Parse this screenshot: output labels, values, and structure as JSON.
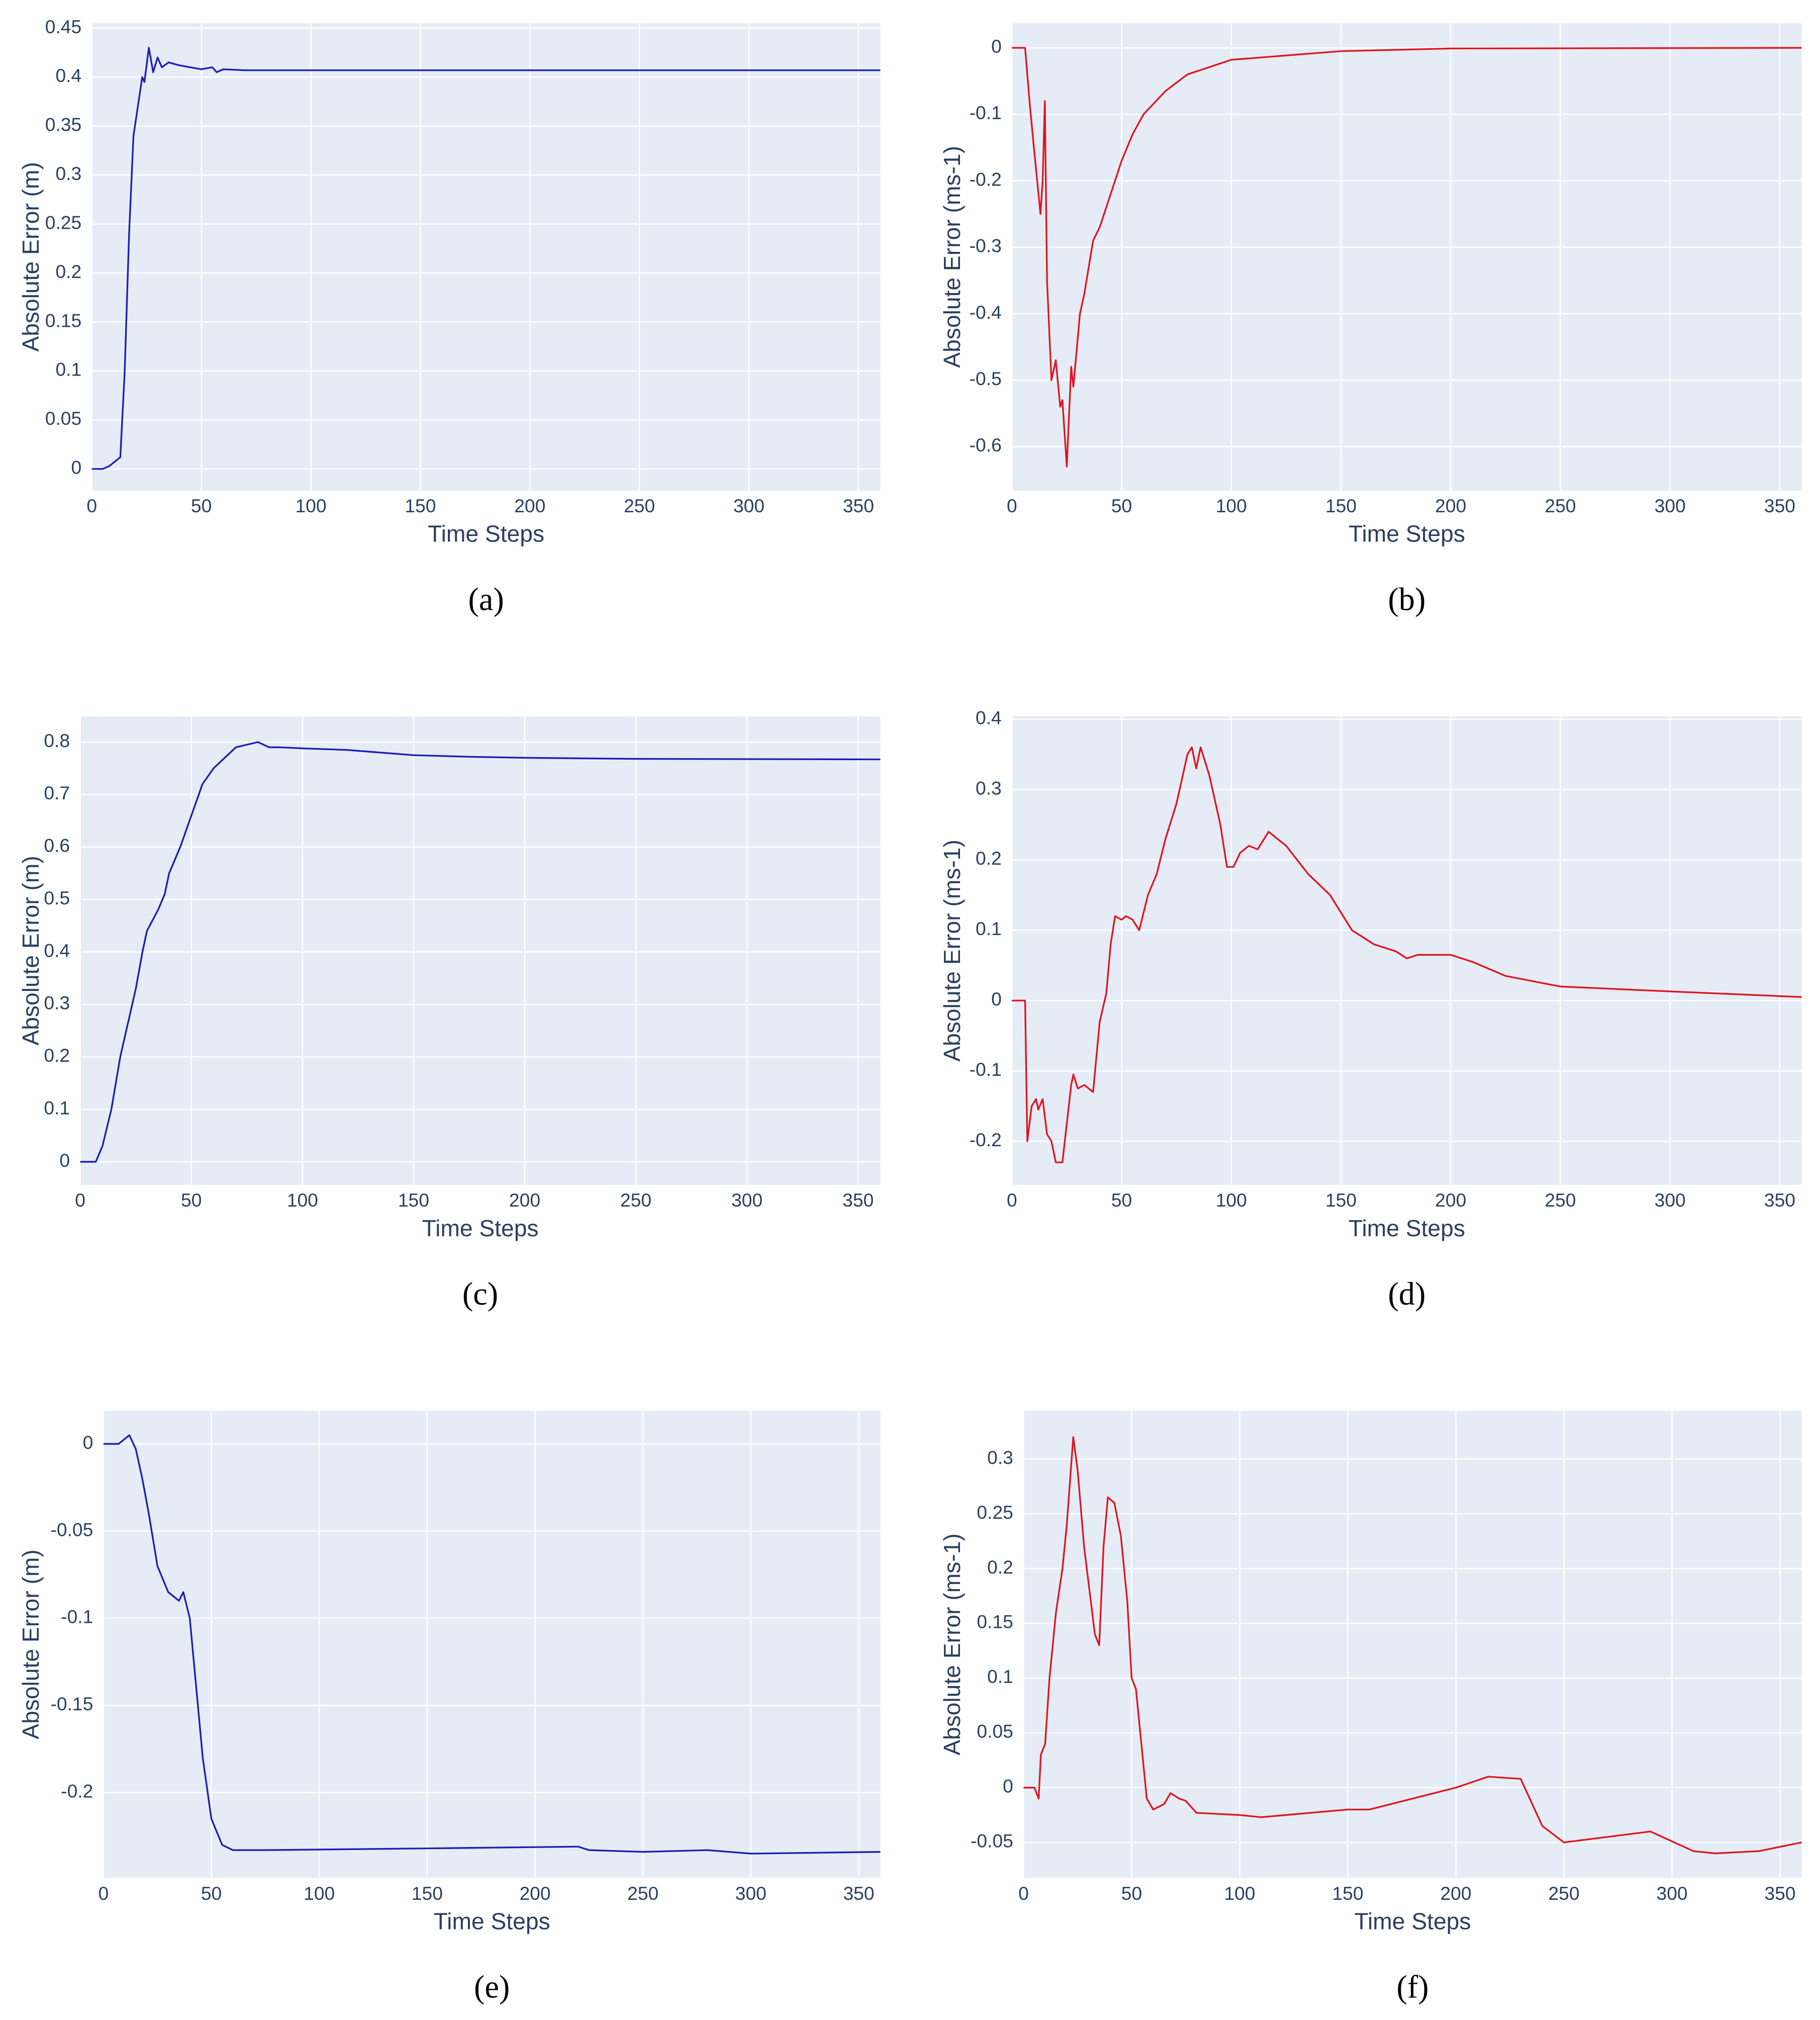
{
  "chart_data": [
    {
      "type": "line",
      "caption": "(a)",
      "xlabel": "Time Steps",
      "ylabel": "Absolute Error (m)",
      "xlim": [
        0,
        360
      ],
      "xticks": [
        0,
        50,
        100,
        150,
        200,
        250,
        300,
        350
      ],
      "ylim": [
        -0.022,
        0.455
      ],
      "yticks": [
        0,
        0.05,
        0.1,
        0.15,
        0.2,
        0.25,
        0.3,
        0.35,
        0.4,
        0.45
      ],
      "grid": true,
      "color": "#1c1cb8",
      "x": [
        0,
        5,
        8,
        13,
        15,
        17,
        19,
        21,
        23,
        24,
        26,
        28,
        30,
        32,
        35,
        40,
        45,
        50,
        55,
        57,
        60,
        70,
        100,
        200,
        360
      ],
      "values": [
        0,
        0,
        0.003,
        0.012,
        0.1,
        0.24,
        0.34,
        0.37,
        0.4,
        0.395,
        0.43,
        0.405,
        0.42,
        0.41,
        0.415,
        0.412,
        0.41,
        0.408,
        0.41,
        0.405,
        0.408,
        0.407,
        0.407,
        0.407,
        0.407
      ]
    },
    {
      "type": "line",
      "caption": "(b)",
      "xlabel": "Time Steps",
      "ylabel": "Absolute Error (ms-1)",
      "xlim": [
        0,
        360
      ],
      "xticks": [
        0,
        50,
        100,
        150,
        200,
        250,
        300,
        350
      ],
      "ylim": [
        -0.666,
        0.037
      ],
      "yticks": [
        -0.6,
        -0.5,
        -0.4,
        -0.3,
        -0.2,
        -0.1,
        0
      ],
      "grid": true,
      "color": "#e0141e",
      "x": [
        0,
        6,
        8,
        10,
        13,
        14,
        15,
        16,
        18,
        20,
        22,
        23,
        25,
        27,
        28,
        31,
        33,
        35,
        37,
        40,
        45,
        50,
        55,
        60,
        70,
        80,
        100,
        150,
        200,
        360
      ],
      "values": [
        0,
        0,
        -0.08,
        -0.15,
        -0.25,
        -0.2,
        -0.08,
        -0.35,
        -0.5,
        -0.47,
        -0.54,
        -0.53,
        -0.63,
        -0.48,
        -0.51,
        -0.4,
        -0.37,
        -0.33,
        -0.29,
        -0.27,
        -0.22,
        -0.17,
        -0.13,
        -0.1,
        -0.065,
        -0.04,
        -0.018,
        -0.005,
        -0.001,
        0
      ]
    },
    {
      "type": "line",
      "caption": "(c)",
      "xlabel": "Time Steps",
      "ylabel": "Absolute Error (m)",
      "xlim": [
        0,
        360
      ],
      "xticks": [
        0,
        50,
        100,
        150,
        200,
        250,
        300,
        350
      ],
      "ylim": [
        -0.044,
        0.849
      ],
      "yticks": [
        0,
        0.1,
        0.2,
        0.3,
        0.4,
        0.5,
        0.6,
        0.7,
        0.8
      ],
      "grid": true,
      "color": "#1c1cb8",
      "x": [
        0,
        7,
        10,
        14,
        18,
        25,
        28,
        30,
        35,
        38,
        40,
        45,
        50,
        55,
        60,
        65,
        70,
        80,
        85,
        90,
        100,
        120,
        150,
        175,
        200,
        250,
        360
      ],
      "values": [
        0,
        0,
        0.03,
        0.1,
        0.2,
        0.33,
        0.4,
        0.44,
        0.48,
        0.51,
        0.55,
        0.6,
        0.66,
        0.72,
        0.75,
        0.77,
        0.79,
        0.8,
        0.79,
        0.79,
        0.788,
        0.785,
        0.775,
        0.772,
        0.77,
        0.768,
        0.767
      ]
    },
    {
      "type": "line",
      "caption": "(d)",
      "xlabel": "Time Steps",
      "ylabel": "Absolute Error (ms-1)",
      "xlim": [
        0,
        360
      ],
      "xticks": [
        0,
        50,
        100,
        150,
        200,
        250,
        300,
        350
      ],
      "ylim": [
        -0.262,
        0.404
      ],
      "yticks": [
        -0.2,
        -0.1,
        0,
        0.1,
        0.2,
        0.3,
        0.4
      ],
      "grid": true,
      "color": "#e0141e",
      "x": [
        0,
        6,
        7,
        9,
        11,
        12,
        14,
        16,
        18,
        20,
        23,
        27,
        28,
        30,
        33,
        37,
        40,
        43,
        45,
        47,
        50,
        52,
        55,
        58,
        62,
        66,
        70,
        75,
        80,
        82,
        84,
        86,
        90,
        95,
        98,
        101,
        104,
        108,
        112,
        117,
        125,
        135,
        145,
        155,
        165,
        175,
        180,
        185,
        200,
        210,
        225,
        250,
        300,
        360
      ],
      "values": [
        0,
        0,
        -0.2,
        -0.15,
        -0.14,
        -0.155,
        -0.14,
        -0.19,
        -0.2,
        -0.23,
        -0.23,
        -0.12,
        -0.105,
        -0.125,
        -0.12,
        -0.13,
        -0.03,
        0.01,
        0.08,
        0.12,
        0.115,
        0.12,
        0.115,
        0.1,
        0.15,
        0.18,
        0.23,
        0.28,
        0.35,
        0.36,
        0.33,
        0.36,
        0.32,
        0.25,
        0.19,
        0.19,
        0.21,
        0.22,
        0.215,
        0.24,
        0.22,
        0.18,
        0.15,
        0.1,
        0.08,
        0.07,
        0.06,
        0.065,
        0.065,
        0.055,
        0.035,
        0.02,
        0.013,
        0.005
      ]
    },
    {
      "type": "line",
      "caption": "(e)",
      "xlabel": "Time Steps",
      "ylabel": "Absolute Error (m)",
      "xlim": [
        0,
        360
      ],
      "xticks": [
        0,
        50,
        100,
        150,
        200,
        250,
        300,
        350
      ],
      "ylim": [
        -0.249,
        0.019
      ],
      "yticks": [
        -0.2,
        -0.15,
        -0.1,
        -0.05,
        0
      ],
      "grid": true,
      "color": "#1c1cb8",
      "x": [
        0,
        7,
        12,
        15,
        18,
        21,
        25,
        30,
        35,
        37,
        40,
        43,
        46,
        50,
        55,
        60,
        75,
        150,
        220,
        225,
        250,
        280,
        300,
        360
      ],
      "values": [
        0,
        0,
        0.005,
        -0.003,
        -0.02,
        -0.04,
        -0.07,
        -0.085,
        -0.09,
        -0.085,
        -0.1,
        -0.14,
        -0.18,
        -0.215,
        -0.23,
        -0.233,
        -0.233,
        -0.232,
        -0.231,
        -0.233,
        -0.234,
        -0.233,
        -0.235,
        -0.234
      ]
    },
    {
      "type": "line",
      "caption": "(f)",
      "xlabel": "Time Steps",
      "ylabel": "Absolute Error (ms-1)",
      "xlim": [
        0,
        360
      ],
      "xticks": [
        0,
        50,
        100,
        150,
        200,
        250,
        300,
        350
      ],
      "ylim": [
        -0.0825,
        0.344
      ],
      "yticks": [
        -0.05,
        0,
        0.05,
        0.1,
        0.15,
        0.2,
        0.25,
        0.3
      ],
      "grid": true,
      "color": "#e0141e",
      "x": [
        0,
        5,
        7,
        8,
        10,
        12,
        15,
        18,
        20,
        23,
        25,
        28,
        33,
        35,
        37,
        39,
        42,
        45,
        48,
        50,
        52,
        55,
        57,
        60,
        65,
        68,
        72,
        75,
        80,
        100,
        110,
        150,
        160,
        180,
        200,
        215,
        230,
        240,
        250,
        270,
        290,
        310,
        320,
        340,
        360
      ],
      "values": [
        0,
        0,
        -0.01,
        0.03,
        0.04,
        0.1,
        0.16,
        0.2,
        0.24,
        0.32,
        0.29,
        0.22,
        0.14,
        0.13,
        0.22,
        0.265,
        0.26,
        0.23,
        0.17,
        0.1,
        0.09,
        0.03,
        -0.01,
        -0.02,
        -0.015,
        -0.005,
        -0.01,
        -0.012,
        -0.023,
        -0.025,
        -0.027,
        -0.02,
        -0.02,
        -0.01,
        0,
        0.01,
        0.008,
        -0.035,
        -0.05,
        -0.045,
        -0.04,
        -0.058,
        -0.06,
        -0.058,
        -0.05
      ]
    }
  ]
}
